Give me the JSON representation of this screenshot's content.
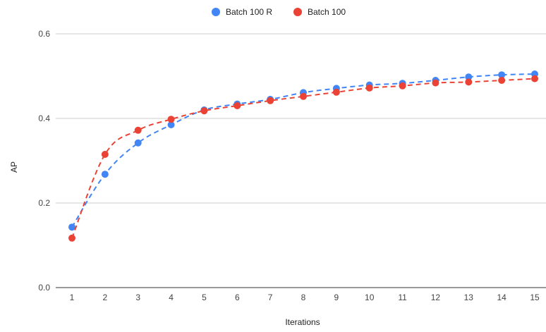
{
  "chart_data": {
    "type": "scatter",
    "title": "",
    "xlabel": "Iterations",
    "ylabel": "AP",
    "x": [
      1,
      2,
      3,
      4,
      5,
      6,
      7,
      8,
      9,
      10,
      11,
      12,
      13,
      14,
      15
    ],
    "xlim": [
      0.5,
      15.5
    ],
    "ylim": [
      0,
      0.6
    ],
    "yticks": [
      "0.0",
      "0.2",
      "0.4",
      "0.6"
    ],
    "xticks": [
      "1",
      "2",
      "3",
      "4",
      "5",
      "6",
      "7",
      "8",
      "9",
      "10",
      "11",
      "12",
      "13",
      "14",
      "15"
    ],
    "grid": "horizontal",
    "legend_position": "top",
    "trendline": "dashed",
    "series": [
      {
        "name": "Batch 100 R",
        "color": "#4285f4",
        "values": [
          0.143,
          0.268,
          0.342,
          0.385,
          0.42,
          0.434,
          0.445,
          0.461,
          0.471,
          0.479,
          0.483,
          0.49,
          0.498,
          0.503,
          0.505
        ]
      },
      {
        "name": "Batch 100",
        "color": "#ea4335",
        "values": [
          0.117,
          0.315,
          0.372,
          0.398,
          0.418,
          0.43,
          0.442,
          0.452,
          0.462,
          0.472,
          0.477,
          0.484,
          0.486,
          0.49,
          0.494
        ]
      }
    ]
  }
}
